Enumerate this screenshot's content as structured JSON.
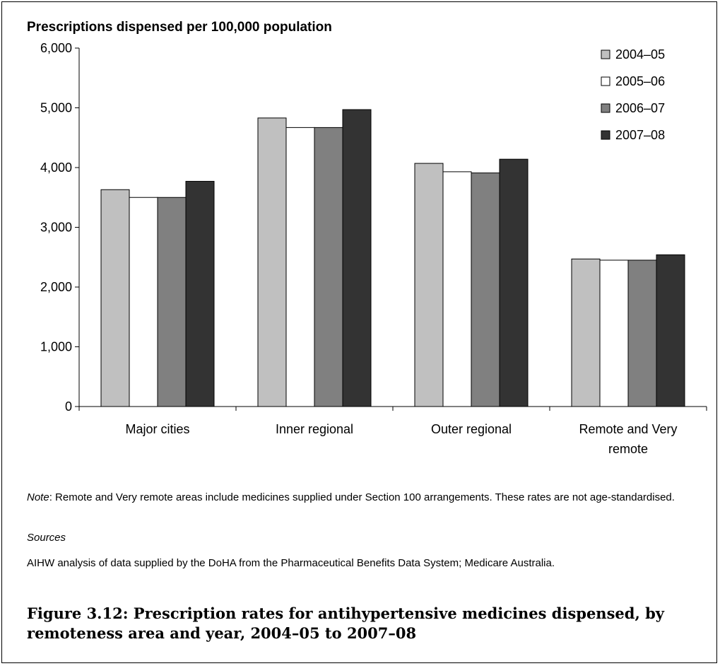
{
  "chart_data": {
    "type": "bar",
    "ylabel": "Prescriptions dispensed per 100,000 population",
    "xlabel": "",
    "categories": [
      [
        "Major cities"
      ],
      [
        "Inner regional"
      ],
      [
        "Outer regional"
      ],
      [
        "Remote and Very",
        "remote"
      ]
    ],
    "series": [
      {
        "name": "2004–05",
        "color": "#c0c0c0",
        "values": [
          3630,
          4830,
          4070,
          2470
        ]
      },
      {
        "name": "2005–06",
        "color": "#ffffff",
        "values": [
          3500,
          4670,
          3930,
          2450
        ]
      },
      {
        "name": "2006–07",
        "color": "#808080",
        "values": [
          3500,
          4670,
          3910,
          2450
        ]
      },
      {
        "name": "2007–08",
        "color": "#333333",
        "values": [
          3770,
          4970,
          4140,
          2540
        ]
      }
    ],
    "ylim": [
      0,
      6000
    ],
    "yticks": [
      "0",
      "1,000",
      "2,000",
      "3,000",
      "4,000",
      "5,000",
      "6,000"
    ],
    "grid": false,
    "legend": "top-right"
  },
  "note": {
    "label": "Note",
    "text": ": Remote and Very remote areas include medicines supplied under Section 100 arrangements. These rates are not age-standardised."
  },
  "sources": {
    "heading": "Sources",
    "text": "AIHW analysis of data supplied by the DoHA from the Pharmaceutical Benefits Data System; Medicare Australia."
  },
  "caption": "Figure 3.12: Prescription rates for antihypertensive medicines dispensed, by remoteness area and year, 2004–05 to 2007–08"
}
